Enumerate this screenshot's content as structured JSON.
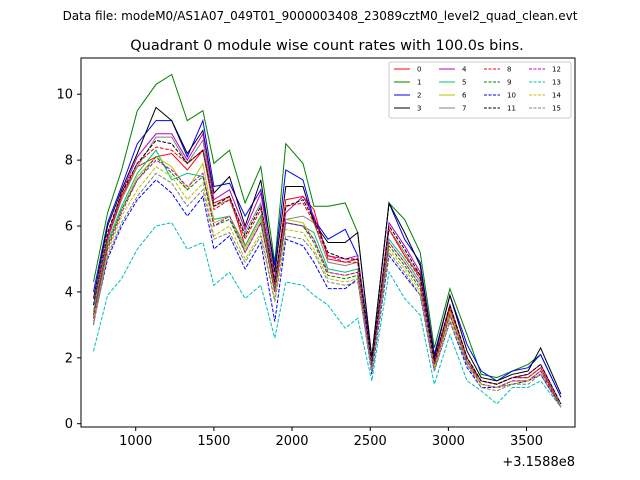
{
  "header": {
    "datafile": "Data file: modeM0/AS1A07_049T01_9000003408_23089cztM0_level2_quad_clean.evt"
  },
  "chart_data": {
    "type": "line",
    "title": "Quadrant 0 module wise count rates with 100.0s bins.",
    "xlabel": "",
    "ylabel": "",
    "x_offset_label": "+3.1588e8",
    "xlim": [
      650,
      3810
    ],
    "ylim": [
      -0.1,
      11.1
    ],
    "x_ticks": [
      1000,
      1500,
      2000,
      2500,
      3000,
      3500
    ],
    "x_tick_labels": [
      "1000",
      "1500",
      "2000",
      "2500",
      "3000",
      "3500"
    ],
    "y_ticks": [
      0,
      2,
      4,
      6,
      8,
      10
    ],
    "y_tick_labels": [
      "0",
      "2",
      "4",
      "6",
      "8",
      "10"
    ],
    "grid": false,
    "legend_position": "top-right",
    "x": [
      730,
      820,
      910,
      1010,
      1130,
      1230,
      1330,
      1430,
      1500,
      1600,
      1700,
      1800,
      1890,
      1960,
      2070,
      2140,
      2230,
      2340,
      2420,
      2510,
      2620,
      2720,
      2820,
      2910,
      3010,
      3120,
      3210,
      3310,
      3410,
      3510,
      3590,
      3720
    ],
    "series": [
      {
        "name": "0",
        "color": "#ff0000",
        "dash": "solid",
        "values": [
          3.0,
          5.6,
          6.9,
          7.8,
          8.1,
          8.2,
          7.7,
          8.3,
          6.7,
          6.9,
          5.4,
          6.3,
          4.2,
          6.8,
          6.9,
          6.5,
          5.0,
          4.9,
          5.0,
          1.6,
          5.9,
          5.1,
          4.5,
          1.7,
          3.5,
          1.9,
          1.3,
          1.2,
          1.4,
          1.4,
          1.7,
          0.5
        ]
      },
      {
        "name": "1",
        "color": "#008000",
        "dash": "solid",
        "values": [
          4.3,
          6.4,
          7.7,
          9.5,
          10.3,
          10.6,
          9.2,
          9.5,
          7.9,
          8.3,
          6.7,
          7.8,
          4.9,
          8.5,
          7.9,
          6.6,
          6.6,
          6.7,
          5.8,
          2.0,
          6.7,
          6.2,
          5.2,
          2.3,
          4.1,
          2.7,
          1.5,
          1.4,
          1.6,
          1.8,
          2.1,
          0.8
        ]
      },
      {
        "name": "2",
        "color": "#0000ff",
        "dash": "solid",
        "values": [
          4.0,
          6.1,
          7.2,
          8.5,
          9.2,
          9.2,
          8.1,
          9.2,
          7.2,
          7.3,
          6.3,
          7.1,
          4.8,
          7.7,
          7.4,
          6.2,
          5.6,
          5.9,
          5.1,
          2.0,
          6.7,
          5.6,
          4.9,
          2.1,
          3.9,
          2.4,
          1.6,
          1.3,
          1.6,
          1.7,
          2.1,
          0.8
        ]
      },
      {
        "name": "3",
        "color": "#000000",
        "dash": "solid",
        "values": [
          3.8,
          6.0,
          7.1,
          8.2,
          9.6,
          9.2,
          8.2,
          8.9,
          7.0,
          7.5,
          6.0,
          7.4,
          4.6,
          7.2,
          7.2,
          6.1,
          5.5,
          5.5,
          5.8,
          2.0,
          6.7,
          5.8,
          4.8,
          2.0,
          3.9,
          2.2,
          1.4,
          1.3,
          1.5,
          1.6,
          2.3,
          0.9
        ]
      },
      {
        "name": "4",
        "color": "#bf00bf",
        "dash": "solid",
        "values": [
          3.6,
          5.7,
          7.0,
          8.1,
          8.8,
          8.8,
          8.0,
          8.8,
          6.8,
          7.1,
          5.9,
          7.0,
          4.4,
          6.4,
          6.9,
          6.3,
          5.1,
          5.0,
          5.1,
          1.8,
          6.1,
          5.4,
          4.6,
          1.9,
          3.6,
          2.0,
          1.3,
          1.2,
          1.4,
          1.5,
          1.8,
          0.6
        ]
      },
      {
        "name": "5",
        "color": "#00bf80",
        "dash": "solid",
        "values": [
          3.4,
          5.5,
          6.6,
          7.6,
          8.3,
          7.4,
          7.6,
          7.5,
          6.2,
          6.3,
          5.4,
          6.3,
          4.1,
          6.1,
          6.0,
          5.8,
          4.7,
          4.6,
          4.7,
          1.7,
          5.6,
          5.0,
          4.3,
          1.8,
          3.4,
          1.9,
          1.2,
          1.1,
          1.3,
          1.3,
          1.6,
          0.6
        ]
      },
      {
        "name": "6",
        "color": "#bfbf00",
        "dash": "solid",
        "values": [
          3.3,
          5.4,
          6.5,
          7.5,
          8.1,
          7.8,
          7.1,
          7.9,
          6.1,
          6.3,
          5.3,
          6.2,
          4.0,
          6.2,
          6.1,
          5.6,
          4.6,
          4.5,
          4.6,
          1.7,
          5.5,
          4.9,
          4.2,
          1.7,
          3.4,
          1.9,
          1.2,
          1.1,
          1.3,
          1.3,
          1.6,
          0.6
        ]
      },
      {
        "name": "7",
        "color": "#808080",
        "dash": "solid",
        "values": [
          3.4,
          5.6,
          6.8,
          7.8,
          8.7,
          8.7,
          7.9,
          8.6,
          6.6,
          6.8,
          5.8,
          6.7,
          4.3,
          6.2,
          6.3,
          6.1,
          4.9,
          4.8,
          4.9,
          1.8,
          5.9,
          5.2,
          4.4,
          1.8,
          3.5,
          2.0,
          1.3,
          1.2,
          1.4,
          1.4,
          1.7,
          0.6
        ]
      },
      {
        "name": "8",
        "color": "#ff0000",
        "dash": "dashed",
        "values": [
          3.2,
          5.6,
          6.9,
          7.9,
          8.4,
          8.3,
          7.9,
          8.3,
          6.5,
          6.8,
          5.6,
          6.5,
          4.2,
          6.6,
          6.7,
          6.1,
          5.1,
          4.9,
          4.9,
          1.7,
          5.9,
          5.1,
          4.4,
          1.8,
          3.5,
          2.0,
          1.3,
          1.2,
          1.4,
          1.4,
          1.7,
          0.5
        ]
      },
      {
        "name": "9",
        "color": "#008000",
        "dash": "dashed",
        "values": [
          3.3,
          5.4,
          6.5,
          7.4,
          8.1,
          7.6,
          7.1,
          7.5,
          6.0,
          6.2,
          5.2,
          6.1,
          4.0,
          6.1,
          6.0,
          5.5,
          4.5,
          4.4,
          4.5,
          1.6,
          5.4,
          4.8,
          4.1,
          1.7,
          3.3,
          1.8,
          1.2,
          1.1,
          1.2,
          1.3,
          1.5,
          0.5
        ]
      },
      {
        "name": "10",
        "color": "#0000ff",
        "dash": "dashed",
        "values": [
          3.1,
          5.0,
          6.0,
          6.8,
          7.4,
          7.0,
          6.3,
          6.9,
          5.3,
          5.7,
          4.7,
          5.5,
          3.1,
          5.6,
          5.4,
          4.9,
          4.1,
          4.1,
          4.4,
          1.5,
          5.1,
          4.5,
          3.9,
          1.6,
          3.1,
          1.7,
          1.1,
          1.1,
          1.2,
          1.3,
          1.5,
          0.5
        ]
      },
      {
        "name": "11",
        "color": "#000000",
        "dash": "dashed",
        "values": [
          3.6,
          5.8,
          7.0,
          7.9,
          8.6,
          8.5,
          7.9,
          8.3,
          6.6,
          6.9,
          5.7,
          6.6,
          4.3,
          6.6,
          6.8,
          6.2,
          5.2,
          5.0,
          5.0,
          1.8,
          6.0,
          5.3,
          4.5,
          1.9,
          3.6,
          2.0,
          1.3,
          1.2,
          1.4,
          1.5,
          1.8,
          0.6
        ]
      },
      {
        "name": "12",
        "color": "#bf00bf",
        "dash": "dashed",
        "values": [
          3.2,
          5.3,
          6.4,
          7.4,
          8.0,
          7.7,
          7.2,
          7.6,
          6.0,
          6.3,
          5.2,
          6.1,
          4.0,
          6.1,
          6.0,
          5.6,
          4.6,
          4.5,
          4.6,
          1.7,
          5.5,
          4.9,
          4.2,
          1.7,
          3.3,
          1.9,
          1.2,
          1.1,
          1.3,
          1.3,
          1.6,
          0.5
        ]
      },
      {
        "name": "13",
        "color": "#00bfbf",
        "dash": "dashed",
        "values": [
          2.2,
          3.9,
          4.4,
          5.3,
          6.0,
          6.1,
          5.3,
          5.5,
          4.2,
          4.6,
          3.8,
          4.2,
          2.6,
          4.3,
          4.2,
          3.9,
          3.6,
          2.9,
          3.2,
          1.3,
          4.6,
          3.8,
          3.3,
          1.2,
          2.7,
          1.3,
          1.0,
          0.6,
          1.1,
          1.1,
          1.3,
          0.5
        ]
      },
      {
        "name": "14",
        "color": "#bfbf00",
        "dash": "dashed",
        "values": [
          3.1,
          5.2,
          6.3,
          7.1,
          7.8,
          7.5,
          6.8,
          7.3,
          5.7,
          6.0,
          5.0,
          5.8,
          3.8,
          5.9,
          5.8,
          5.3,
          4.4,
          4.3,
          4.4,
          1.6,
          5.3,
          4.7,
          4.0,
          1.7,
          3.2,
          1.8,
          1.2,
          1.1,
          1.2,
          1.3,
          1.5,
          0.5
        ]
      },
      {
        "name": "15",
        "color": "#808080",
        "dash": "dashed",
        "values": [
          3.0,
          5.1,
          6.1,
          6.9,
          7.6,
          7.3,
          6.6,
          7.1,
          5.6,
          5.8,
          4.9,
          5.7,
          3.7,
          5.7,
          5.6,
          5.2,
          4.3,
          4.2,
          4.3,
          1.6,
          5.2,
          4.6,
          3.9,
          1.6,
          3.1,
          1.8,
          1.1,
          1.0,
          1.2,
          1.2,
          1.5,
          0.5
        ]
      }
    ]
  }
}
